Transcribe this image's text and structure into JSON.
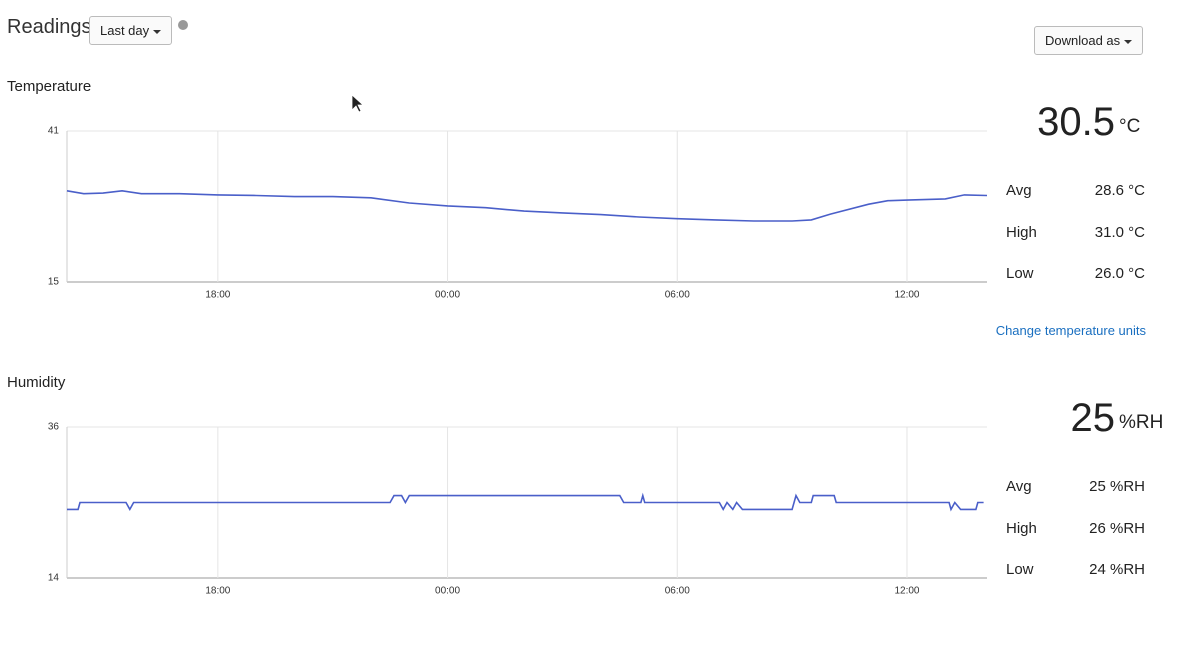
{
  "header": {
    "title": "Readings",
    "range_button": "Last day",
    "download_button": "Download as"
  },
  "chart_data": [
    {
      "type": "line",
      "title": "Temperature",
      "color": "#4a5fc9",
      "xlim": [
        14.06,
        38.09
      ],
      "ylim": [
        15,
        41
      ],
      "yticks": [
        15,
        41
      ],
      "xticks": [
        {
          "value": 18,
          "label": "18:00"
        },
        {
          "value": 24,
          "label": "00:00"
        },
        {
          "value": 30,
          "label": "06:00"
        },
        {
          "value": 36,
          "label": "12:00"
        }
      ],
      "grid": true,
      "x": [
        14.06,
        14.5,
        15,
        15.5,
        16,
        17,
        18,
        19,
        20,
        21,
        22,
        23,
        24,
        25,
        26,
        27,
        28,
        29,
        30,
        31,
        32,
        33,
        33.5,
        34,
        35,
        35.5,
        36,
        37,
        37.5,
        38.09
      ],
      "values": [
        30.7,
        30.2,
        30.3,
        30.7,
        30.2,
        30.2,
        30.0,
        29.9,
        29.7,
        29.7,
        29.5,
        28.6,
        28.1,
        27.8,
        27.2,
        26.9,
        26.6,
        26.2,
        25.9,
        25.7,
        25.5,
        25.5,
        25.7,
        26.7,
        28.4,
        29.0,
        29.1,
        29.3,
        30.0,
        29.9
      ],
      "current": "30.5",
      "unit": "°C",
      "stats": [
        {
          "label": "Avg",
          "value": "28.6 °C"
        },
        {
          "label": "High",
          "value": "31.0 °C"
        },
        {
          "label": "Low",
          "value": "26.0 °C"
        }
      ],
      "link": "Change temperature units"
    },
    {
      "type": "line",
      "title": "Humidity",
      "color": "#4a5fc9",
      "xlim": [
        14.06,
        38.09
      ],
      "ylim": [
        14,
        36
      ],
      "yticks": [
        14,
        36
      ],
      "xticks": [
        {
          "value": 18,
          "label": "18:00"
        },
        {
          "value": 24,
          "label": "00:00"
        },
        {
          "value": 30,
          "label": "06:00"
        },
        {
          "value": 36,
          "label": "12:00"
        }
      ],
      "grid": true,
      "x": [
        14.06,
        14.35,
        14.4,
        15.6,
        15.7,
        15.8,
        22.5,
        22.6,
        22.8,
        22.9,
        23.0,
        28.5,
        28.6,
        29.05,
        29.1,
        29.15,
        31.1,
        31.2,
        31.3,
        31.45,
        31.55,
        31.7,
        33.0,
        33.1,
        33.2,
        33.5,
        33.55,
        34.1,
        34.15,
        37.1,
        37.15,
        37.25,
        37.4,
        37.8,
        37.85,
        38.0
      ],
      "values": [
        24,
        24,
        25,
        25,
        24,
        25,
        25,
        26,
        26,
        25,
        26,
        26,
        25,
        25,
        26,
        25,
        25,
        24,
        25,
        24,
        25,
        24,
        24,
        26,
        25,
        25,
        26,
        26,
        25,
        25,
        24,
        25,
        24,
        24,
        25,
        25
      ],
      "current": "25",
      "unit": "%RH",
      "stats": [
        {
          "label": "Avg",
          "value": "25 %RH"
        },
        {
          "label": "High",
          "value": "26 %RH"
        },
        {
          "label": "Low",
          "value": "24 %RH"
        }
      ]
    }
  ]
}
